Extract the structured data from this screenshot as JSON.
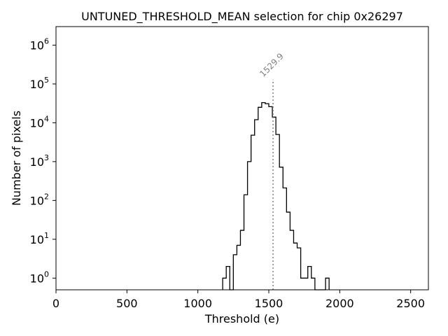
{
  "chart_data": {
    "type": "histogram",
    "title": "UNTUNED_THRESHOLD_MEAN selection for chip 0x26297",
    "xlabel": "Threshold (e)",
    "ylabel": "Number of pixels",
    "xlim": [
      0,
      2625
    ],
    "ylim": [
      0.5,
      3000000
    ],
    "yscale": "log",
    "x_ticks": [
      0,
      500,
      1000,
      1500,
      2000,
      2500
    ],
    "x_tick_labels": [
      "0",
      "500",
      "1000",
      "1500",
      "2000",
      "2500"
    ],
    "y_ticks": [
      1,
      10,
      100,
      1000,
      10000,
      100000,
      1000000
    ],
    "y_tick_labels": [
      {
        "base": "10",
        "exp": "0"
      },
      {
        "base": "10",
        "exp": "1"
      },
      {
        "base": "10",
        "exp": "2"
      },
      {
        "base": "10",
        "exp": "3"
      },
      {
        "base": "10",
        "exp": "4"
      },
      {
        "base": "10",
        "exp": "5"
      },
      {
        "base": "10",
        "exp": "6"
      }
    ],
    "bin_width": 25,
    "bins": [
      {
        "x0": 1175,
        "count": 1
      },
      {
        "x0": 1200,
        "count": 2
      },
      {
        "x0": 1225,
        "count": 0
      },
      {
        "x0": 1250,
        "count": 4
      },
      {
        "x0": 1275,
        "count": 7
      },
      {
        "x0": 1300,
        "count": 17
      },
      {
        "x0": 1325,
        "count": 140
      },
      {
        "x0": 1350,
        "count": 1000
      },
      {
        "x0": 1375,
        "count": 4800
      },
      {
        "x0": 1400,
        "count": 12000
      },
      {
        "x0": 1425,
        "count": 25000
      },
      {
        "x0": 1450,
        "count": 33000
      },
      {
        "x0": 1475,
        "count": 31000
      },
      {
        "x0": 1500,
        "count": 26000
      },
      {
        "x0": 1525,
        "count": 14000
      },
      {
        "x0": 1550,
        "count": 5000
      },
      {
        "x0": 1575,
        "count": 720
      },
      {
        "x0": 1600,
        "count": 210
      },
      {
        "x0": 1625,
        "count": 50
      },
      {
        "x0": 1650,
        "count": 17
      },
      {
        "x0": 1675,
        "count": 8
      },
      {
        "x0": 1700,
        "count": 6
      },
      {
        "x0": 1725,
        "count": 1
      },
      {
        "x0": 1750,
        "count": 1
      },
      {
        "x0": 1775,
        "count": 2
      },
      {
        "x0": 1800,
        "count": 1
      },
      {
        "x0": 1825,
        "count": 0
      },
      {
        "x0": 1850,
        "count": 0
      },
      {
        "x0": 1875,
        "count": 0
      },
      {
        "x0": 1900,
        "count": 1
      }
    ],
    "annotations": [
      {
        "type": "vline",
        "x": 1529.9,
        "label": "1529.9",
        "style": "dotted",
        "color": "#808080"
      }
    ],
    "line_color": "#000000",
    "grid": false
  }
}
